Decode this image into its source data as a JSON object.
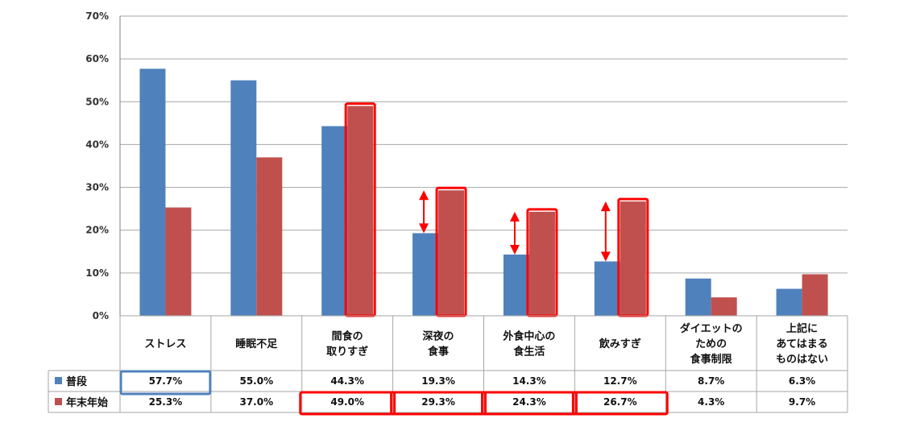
{
  "chart_data": {
    "type": "bar",
    "categories": [
      [
        "ストレス"
      ],
      [
        "睡眠不足"
      ],
      [
        "間食の",
        "取りすぎ"
      ],
      [
        "深夜の",
        "食事"
      ],
      [
        "外食中心の",
        "食生活"
      ],
      [
        "飲みすぎ"
      ],
      [
        "ダイエットの",
        "ための",
        "食事制限"
      ],
      [
        "上記に",
        "あてはまる",
        "ものはない"
      ]
    ],
    "series": [
      {
        "name": "普段",
        "color": "#4f81bd",
        "values": [
          57.7,
          55.0,
          44.3,
          19.3,
          14.3,
          12.7,
          8.7,
          6.3
        ],
        "labels": [
          "57.7%",
          "55.0%",
          "44.3%",
          "19.3%",
          "14.3%",
          "12.7%",
          "8.7%",
          "6.3%"
        ]
      },
      {
        "name": "年末年始",
        "color": "#c0504d",
        "values": [
          25.3,
          37.0,
          49.0,
          29.3,
          24.3,
          26.7,
          4.3,
          9.7
        ],
        "labels": [
          "25.3%",
          "37.0%",
          "49.0%",
          "29.3%",
          "24.3%",
          "26.7%",
          "4.3%",
          "9.7%"
        ]
      }
    ],
    "ylim": [
      0,
      70
    ],
    "yticks": [
      "0%",
      "10%",
      "20%",
      "30%",
      "40%",
      "50%",
      "60%",
      "70%"
    ],
    "grid": true,
    "legend": "data-table",
    "highlight_color": "#ff0000",
    "highlighted_bars_series2": [
      2,
      3,
      4,
      5
    ],
    "highlighted_cells_series1": [
      0
    ],
    "highlighted_cells_series2": [
      2,
      3,
      4,
      5
    ],
    "arrows_between_series": [
      3,
      4,
      5
    ]
  }
}
